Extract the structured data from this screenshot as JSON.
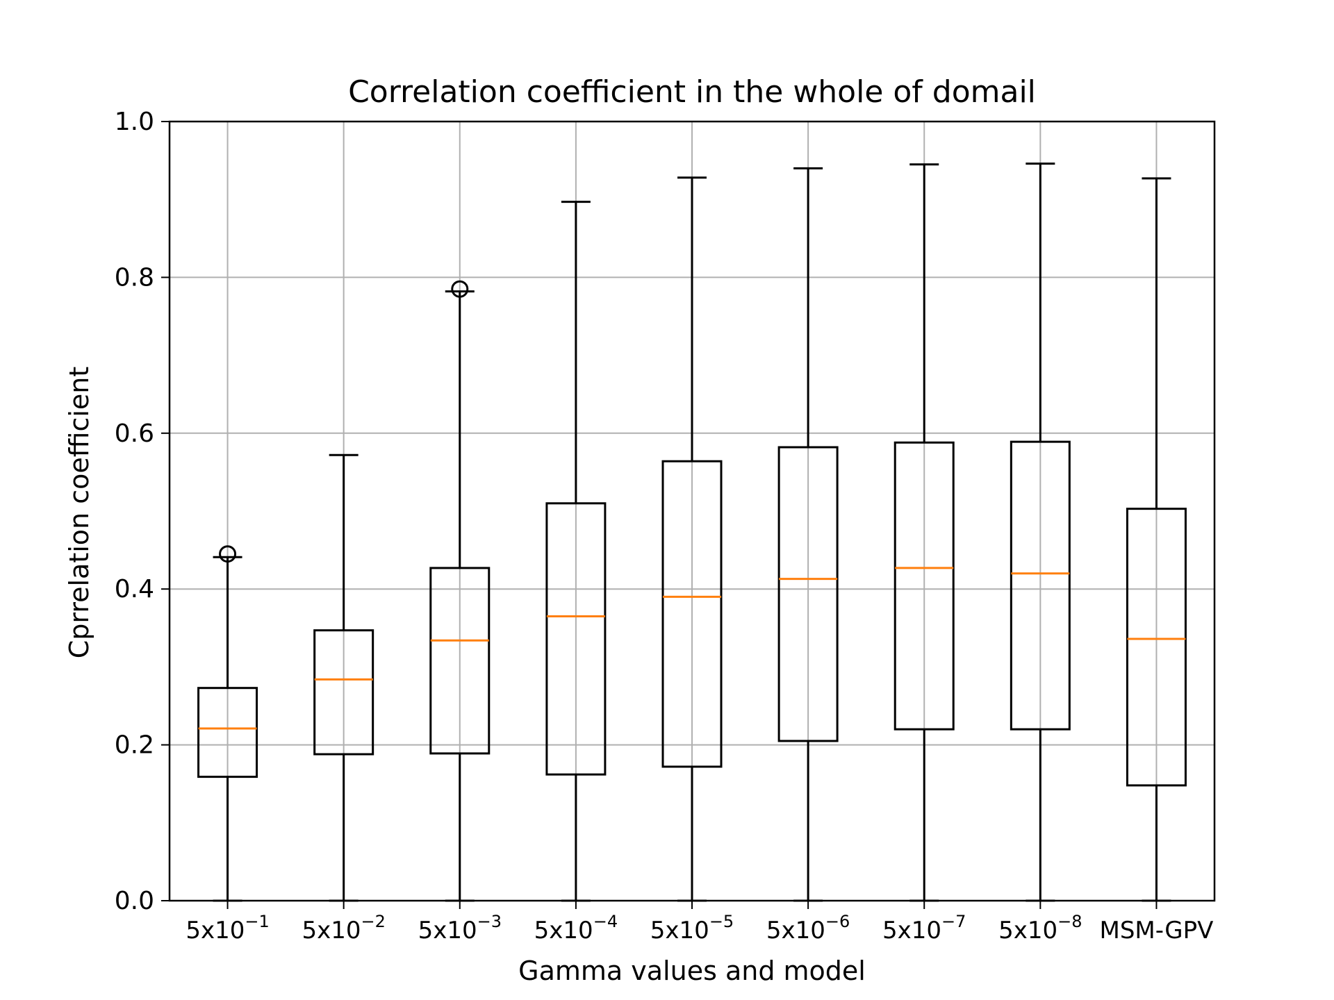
{
  "chart_data": {
    "type": "box",
    "title": "Correlation coefficient in the whole of domail",
    "xlabel": "Gamma values and model",
    "ylabel": "Cprrelation coefficient",
    "ylim": [
      0,
      1.0
    ],
    "yticks": [
      "0.0",
      "0.2",
      "0.4",
      "0.6",
      "0.8",
      "1.0"
    ],
    "grid": true,
    "categories": [
      {
        "base": "5x10",
        "exp": "−1"
      },
      {
        "base": "5x10",
        "exp": "−2"
      },
      {
        "base": "5x10",
        "exp": "−3"
      },
      {
        "base": "5x10",
        "exp": "−4"
      },
      {
        "base": "5x10",
        "exp": "−5"
      },
      {
        "base": "5x10",
        "exp": "−6"
      },
      {
        "base": "5x10",
        "exp": "−7"
      },
      {
        "base": "5x10",
        "exp": "−8"
      },
      {
        "base": "MSM-GPV",
        "exp": ""
      }
    ],
    "boxes": [
      {
        "whisker_low": 0.0,
        "q1": 0.159,
        "median": 0.221,
        "q3": 0.273,
        "whisker_high": 0.441,
        "outliers": [
          0.445
        ]
      },
      {
        "whisker_low": 0.0,
        "q1": 0.188,
        "median": 0.284,
        "q3": 0.347,
        "whisker_high": 0.572,
        "outliers": []
      },
      {
        "whisker_low": 0.0,
        "q1": 0.189,
        "median": 0.334,
        "q3": 0.427,
        "whisker_high": 0.782,
        "outliers": [
          0.785
        ]
      },
      {
        "whisker_low": 0.0,
        "q1": 0.162,
        "median": 0.365,
        "q3": 0.51,
        "whisker_high": 0.897,
        "outliers": []
      },
      {
        "whisker_low": 0.0,
        "q1": 0.172,
        "median": 0.39,
        "q3": 0.564,
        "whisker_high": 0.928,
        "outliers": []
      },
      {
        "whisker_low": 0.0,
        "q1": 0.205,
        "median": 0.413,
        "q3": 0.582,
        "whisker_high": 0.94,
        "outliers": []
      },
      {
        "whisker_low": 0.0,
        "q1": 0.22,
        "median": 0.427,
        "q3": 0.588,
        "whisker_high": 0.945,
        "outliers": []
      },
      {
        "whisker_low": 0.0,
        "q1": 0.22,
        "median": 0.42,
        "q3": 0.589,
        "whisker_high": 0.946,
        "outliers": []
      },
      {
        "whisker_low": 0.0,
        "q1": 0.148,
        "median": 0.336,
        "q3": 0.503,
        "whisker_high": 0.927,
        "outliers": []
      }
    ],
    "colors": {
      "box": "#000000",
      "median": "#ff7f0e",
      "grid": "#b0b0b0"
    }
  }
}
